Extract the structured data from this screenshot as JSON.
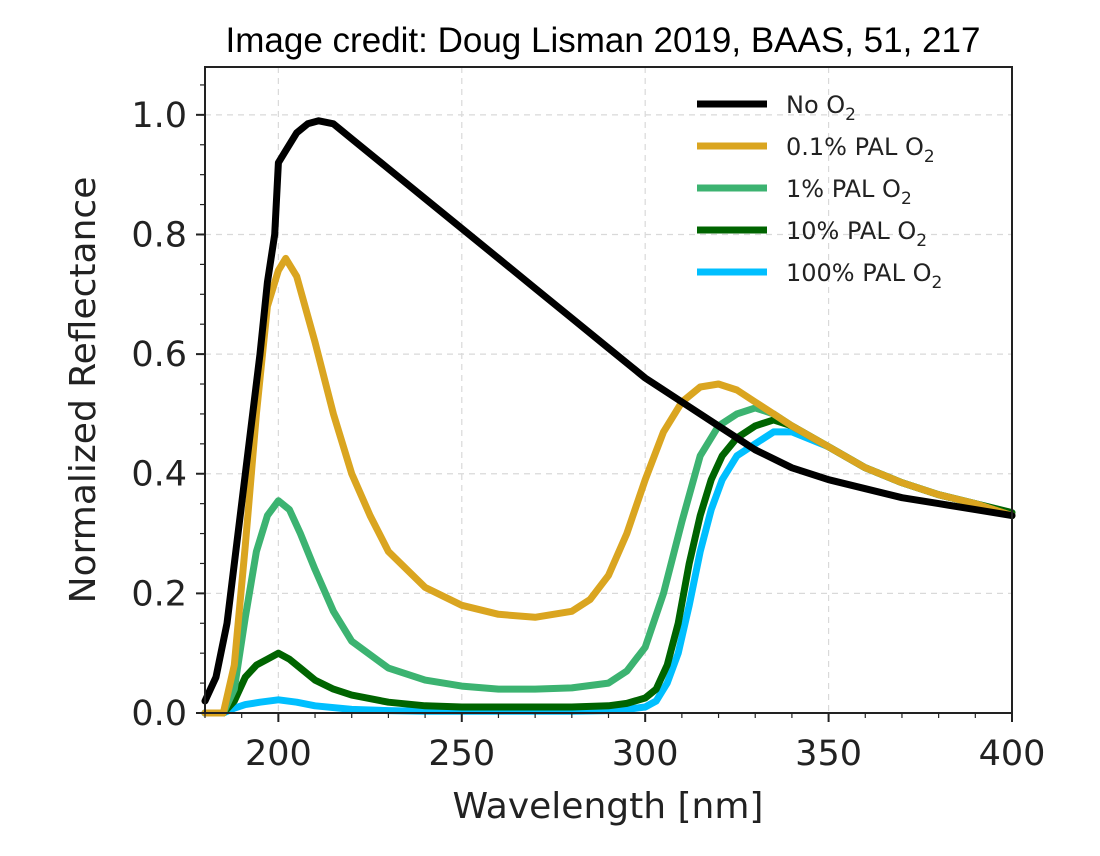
{
  "credit": "Image credit: Doug Lisman 2019, BAAS, 51, 217",
  "chart_data": {
    "type": "line",
    "title": "",
    "xlabel": "Wavelength [nm]",
    "ylabel": "Normalized Reflectance",
    "xlim": [
      180,
      400
    ],
    "ylim": [
      0,
      1.08
    ],
    "xticks": [
      200,
      250,
      300,
      350,
      400
    ],
    "yticks": [
      0.0,
      0.2,
      0.4,
      0.6,
      0.8,
      1.0
    ],
    "xtick_labels": [
      "200",
      "250",
      "300",
      "350",
      "400"
    ],
    "ytick_labels": [
      "0.0",
      "0.2",
      "0.4",
      "0.6",
      "0.8",
      "1.0"
    ],
    "grid": true,
    "legend_position": "top-right",
    "series": [
      {
        "name": "No O2",
        "name_base": "No O",
        "name_sub": "2",
        "color": "#000000",
        "x": [
          180,
          183,
          186,
          189,
          192,
          195,
          197,
          199,
          200,
          202,
          205,
          208,
          211,
          215,
          220,
          230,
          240,
          250,
          260,
          270,
          280,
          290,
          300,
          310,
          320,
          330,
          340,
          350,
          360,
          370,
          380,
          390,
          400
        ],
        "y": [
          0.02,
          0.06,
          0.15,
          0.3,
          0.45,
          0.6,
          0.72,
          0.8,
          0.92,
          0.94,
          0.97,
          0.985,
          0.99,
          0.985,
          0.96,
          0.91,
          0.86,
          0.81,
          0.76,
          0.71,
          0.66,
          0.61,
          0.56,
          0.52,
          0.48,
          0.44,
          0.41,
          0.39,
          0.375,
          0.36,
          0.35,
          0.34,
          0.33
        ]
      },
      {
        "name": "0.1% PAL O2",
        "name_base": "0.1% PAL O",
        "name_sub": "2",
        "color": "#DAA520",
        "x": [
          180,
          185,
          188,
          191,
          194,
          197,
          200,
          202,
          205,
          210,
          215,
          220,
          225,
          230,
          240,
          250,
          260,
          270,
          280,
          285,
          290,
          295,
          300,
          305,
          310,
          315,
          320,
          325,
          330,
          335,
          340,
          350,
          360,
          370,
          380,
          390,
          400
        ],
        "y": [
          0.0,
          0.0,
          0.08,
          0.28,
          0.5,
          0.68,
          0.74,
          0.76,
          0.73,
          0.62,
          0.5,
          0.4,
          0.33,
          0.27,
          0.21,
          0.18,
          0.165,
          0.16,
          0.17,
          0.19,
          0.23,
          0.3,
          0.39,
          0.47,
          0.52,
          0.545,
          0.55,
          0.54,
          0.52,
          0.5,
          0.48,
          0.445,
          0.41,
          0.385,
          0.365,
          0.35,
          0.33
        ]
      },
      {
        "name": "1% PAL O2",
        "name_base": "1% PAL O",
        "name_sub": "2",
        "color": "#3CB371",
        "x": [
          180,
          185,
          188,
          191,
          194,
          197,
          200,
          203,
          206,
          210,
          215,
          220,
          230,
          240,
          250,
          260,
          270,
          280,
          290,
          295,
          300,
          305,
          310,
          315,
          320,
          325,
          330,
          335,
          340,
          350,
          360,
          370,
          380,
          390,
          400
        ],
        "y": [
          0.0,
          0.0,
          0.04,
          0.16,
          0.27,
          0.33,
          0.355,
          0.34,
          0.3,
          0.24,
          0.17,
          0.12,
          0.075,
          0.055,
          0.045,
          0.04,
          0.04,
          0.042,
          0.05,
          0.07,
          0.11,
          0.2,
          0.32,
          0.43,
          0.48,
          0.5,
          0.51,
          0.5,
          0.48,
          0.445,
          0.41,
          0.385,
          0.365,
          0.35,
          0.33
        ]
      },
      {
        "name": "10% PAL O2",
        "name_base": "10% PAL O",
        "name_sub": "2",
        "color": "#006400",
        "x": [
          180,
          185,
          188,
          191,
          194,
          197,
          200,
          203,
          206,
          210,
          215,
          220,
          230,
          240,
          250,
          260,
          270,
          280,
          290,
          295,
          300,
          303,
          306,
          309,
          312,
          315,
          318,
          321,
          325,
          330,
          335,
          340,
          350,
          360,
          370,
          380,
          390,
          400
        ],
        "y": [
          0.0,
          0.0,
          0.02,
          0.06,
          0.08,
          0.09,
          0.1,
          0.09,
          0.075,
          0.055,
          0.04,
          0.03,
          0.018,
          0.012,
          0.01,
          0.01,
          0.01,
          0.01,
          0.012,
          0.016,
          0.025,
          0.04,
          0.08,
          0.15,
          0.25,
          0.33,
          0.39,
          0.43,
          0.46,
          0.48,
          0.49,
          0.48,
          0.445,
          0.41,
          0.385,
          0.365,
          0.35,
          0.335
        ]
      },
      {
        "name": "100% PAL O2",
        "name_base": "100% PAL O",
        "name_sub": "2",
        "color": "#00BFFF",
        "x": [
          180,
          185,
          188,
          191,
          195,
          200,
          205,
          210,
          220,
          230,
          240,
          250,
          260,
          270,
          280,
          290,
          295,
          300,
          303,
          306,
          309,
          312,
          315,
          318,
          321,
          325,
          330,
          335,
          340,
          350,
          360,
          370,
          380,
          390,
          400
        ],
        "y": [
          0.0,
          0.0,
          0.008,
          0.014,
          0.018,
          0.022,
          0.018,
          0.012,
          0.006,
          0.004,
          0.003,
          0.003,
          0.003,
          0.003,
          0.003,
          0.004,
          0.006,
          0.01,
          0.02,
          0.05,
          0.1,
          0.18,
          0.27,
          0.34,
          0.39,
          0.43,
          0.45,
          0.47,
          0.47,
          0.445,
          0.41,
          0.385,
          0.365,
          0.35,
          0.33
        ]
      }
    ]
  }
}
